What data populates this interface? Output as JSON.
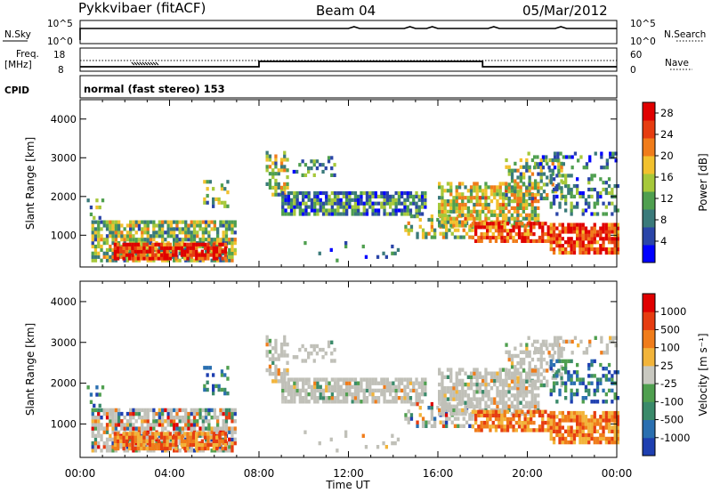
{
  "header": {
    "station": "Pykkvibaer (fitACF)",
    "beam": "Beam 04",
    "date": "05/Mar/2012"
  },
  "noise_panel": {
    "left_label": "N.Sky",
    "left_ticks": [
      "10^5",
      "10^0"
    ],
    "right_ticks": [
      "10^5",
      "10^0"
    ],
    "right_label": "N.Search"
  },
  "freq_panel": {
    "left_label_line1": "Freq.",
    "left_label_line2": "[MHz]",
    "left_ticks": [
      "18",
      "8"
    ],
    "right_ticks": [
      "60",
      "0"
    ],
    "right_label": "Nave"
  },
  "cpid": {
    "label": "CPID",
    "text": "normal (fast stereo) 153"
  },
  "chart_data": [
    {
      "type": "heatmap",
      "quantity": "Power",
      "ylabel": "Slant Range [km]",
      "ylim": [
        180,
        4500
      ],
      "yticks": [
        "4000",
        "3000",
        "2000",
        "1000"
      ],
      "xlabel": "Time UT",
      "xlim_hours": [
        0,
        24
      ],
      "xticks": [
        "00:00",
        "04:00",
        "08:00",
        "12:00",
        "16:00",
        "20:00",
        "00:00"
      ],
      "colorbar": {
        "label": "Power [dB]",
        "ticks": [
          "28",
          "24",
          "20",
          "16",
          "12",
          "8",
          "4"
        ],
        "range": [
          0,
          30
        ],
        "colors": [
          "#0000ff",
          "#2a45a8",
          "#3a7a7a",
          "#4f9f4f",
          "#a6c83a",
          "#f2c12e",
          "#f07c1a",
          "#e63c10",
          "#e00000"
        ]
      }
    },
    {
      "type": "heatmap",
      "quantity": "Velocity",
      "ylabel": "Slant Range [km]",
      "ylim": [
        180,
        4500
      ],
      "yticks": [
        "4000",
        "3000",
        "2000",
        "1000"
      ],
      "xlabel": "Time UT",
      "xlim_hours": [
        0,
        24
      ],
      "xticks": [
        "00:00",
        "04:00",
        "08:00",
        "12:00",
        "16:00",
        "20:00",
        "00:00"
      ],
      "colorbar": {
        "label": "Velocity [m s⁻¹]",
        "ticks": [
          "1000",
          "500",
          "100",
          "25",
          "-25",
          "-100",
          "-500",
          "-1000"
        ],
        "colors": [
          "#1e3fb0",
          "#2a6fb0",
          "#3a8a6a",
          "#4f9f4f",
          "#c8c8c0",
          "#f2b43a",
          "#f07c1a",
          "#e63c10",
          "#e00000"
        ]
      },
      "ground_scatter_color": "#c0c0b8"
    }
  ]
}
